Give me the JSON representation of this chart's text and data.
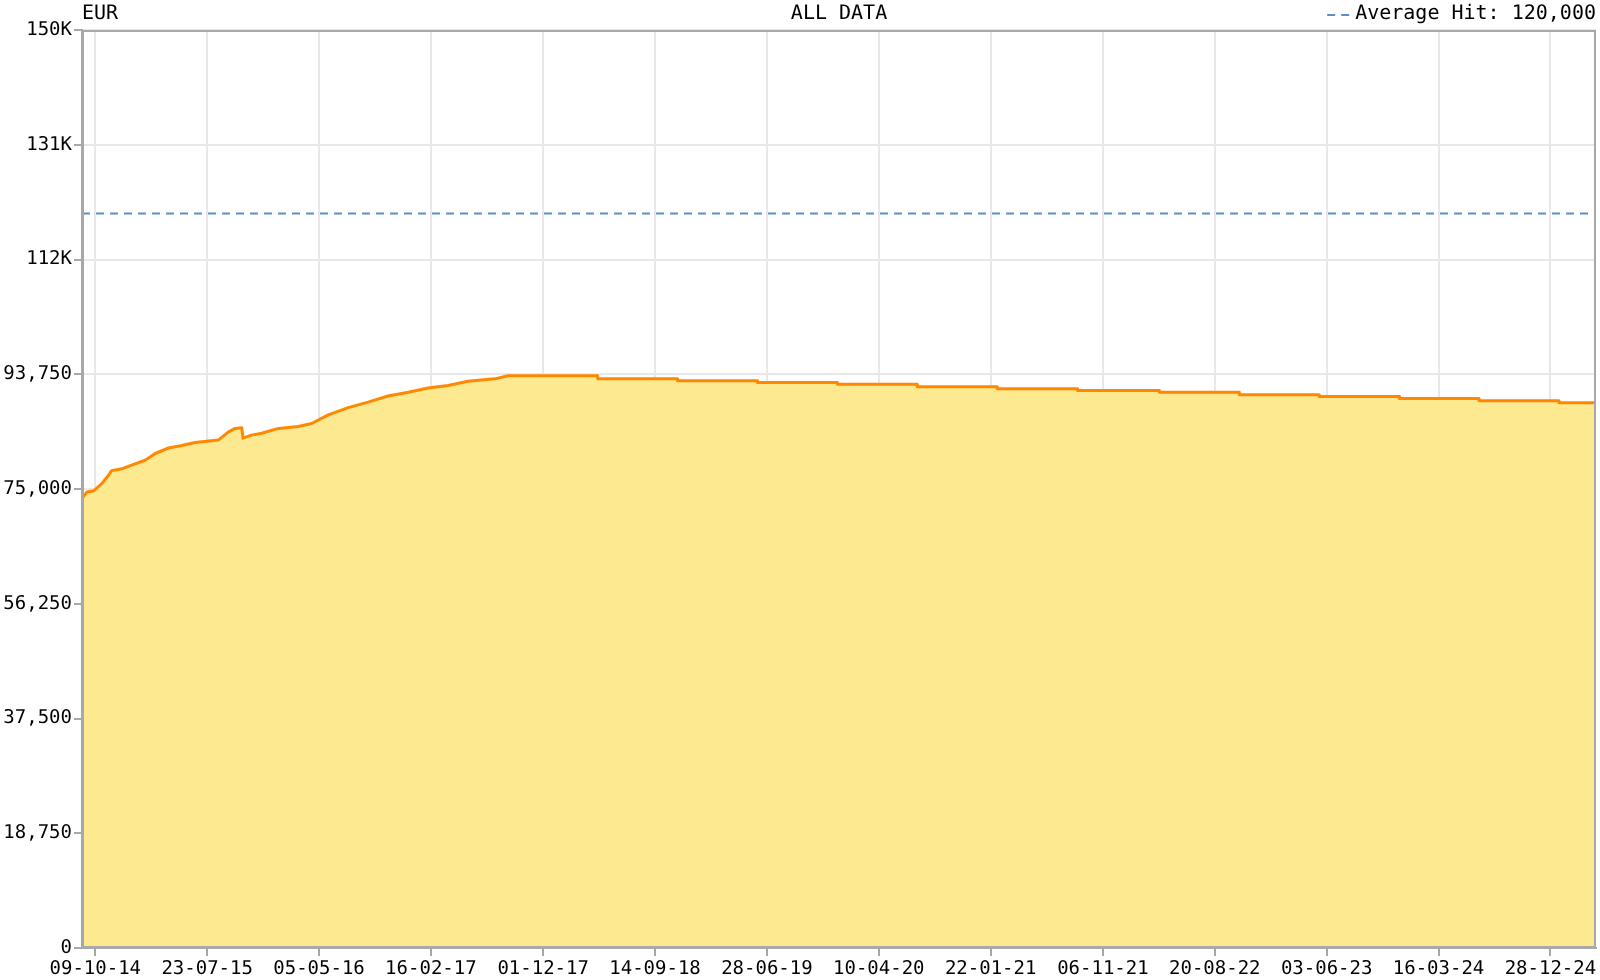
{
  "chart_data": {
    "type": "area",
    "title": "EUR",
    "subtitle": "ALL DATA",
    "x": [
      "2014-09-05",
      "2014-09-18",
      "2014-10-05",
      "2014-10-26",
      "2014-11-09",
      "2014-11-20",
      "2014-12-16",
      "2015-01-19",
      "2015-02-14",
      "2015-03-12",
      "2015-04-15",
      "2015-05-19",
      "2015-06-22",
      "2015-08-21",
      "2015-09-15",
      "2015-10-03",
      "2015-10-20",
      "2015-10-23",
      "2015-11-14",
      "2015-12-10",
      "2016-01-22",
      "2016-03-13",
      "2016-04-16",
      "2016-05-29",
      "2016-07-19",
      "2016-09-08",
      "2016-10-29",
      "2016-12-20",
      "2017-02-09",
      "2017-04-01",
      "2017-05-22",
      "2017-07-30",
      "2017-09-02",
      "2018-04-20",
      "2018-04-20",
      "2018-11-11",
      "2018-11-11",
      "2019-06-04",
      "2019-06-04",
      "2019-12-26",
      "2019-12-26",
      "2020-07-18",
      "2020-07-18",
      "2021-02-08",
      "2021-02-08",
      "2021-09-02",
      "2021-09-02",
      "2022-03-31",
      "2022-03-31",
      "2022-10-22",
      "2022-10-22",
      "2023-05-15",
      "2023-05-15",
      "2023-12-07",
      "2023-12-07",
      "2024-06-28",
      "2024-06-28",
      "2025-01-19",
      "2025-01-19",
      "2025-04-24"
    ],
    "values": [
      73500,
      74500,
      74700,
      75900,
      77000,
      78000,
      78300,
      79100,
      79700,
      80800,
      81700,
      82100,
      82600,
      83000,
      84300,
      84900,
      85000,
      83300,
      83800,
      84100,
      84900,
      85200,
      85700,
      87100,
      88300,
      89200,
      90200,
      90800,
      91500,
      91900,
      92600,
      93000,
      93500,
      93500,
      93000,
      93000,
      92700,
      92700,
      92400,
      92400,
      92100,
      92100,
      91700,
      91700,
      91400,
      91400,
      91100,
      91100,
      90800,
      90800,
      90400,
      90400,
      90100,
      90100,
      89800,
      89800,
      89400,
      89400,
      89100,
      89100
    ],
    "color": "#fde98f",
    "xlim": [
      "2014-09-05",
      "2025-04-24"
    ],
    "xticks": [
      {
        "value": "2014-10-09",
        "label": "09-10-14"
      },
      {
        "value": "2015-07-23",
        "label": "23-07-15"
      },
      {
        "value": "2016-05-05",
        "label": "05-05-16"
      },
      {
        "value": "2017-02-16",
        "label": "16-02-17"
      },
      {
        "value": "2017-12-01",
        "label": "01-12-17"
      },
      {
        "value": "2018-09-14",
        "label": "14-09-18"
      },
      {
        "value": "2019-06-28",
        "label": "28-06-19"
      },
      {
        "value": "2020-04-10",
        "label": "10-04-20"
      },
      {
        "value": "2021-01-22",
        "label": "22-01-21"
      },
      {
        "value": "2021-11-06",
        "label": "06-11-21"
      },
      {
        "value": "2022-08-20",
        "label": "20-08-22"
      },
      {
        "value": "2023-06-03",
        "label": "03-06-23"
      },
      {
        "value": "2024-03-16",
        "label": "16-03-24"
      },
      {
        "value": "2024-12-28",
        "label": "28-12-24"
      }
    ],
    "ylim": [
      0,
      150000
    ],
    "yticks": [
      0,
      {
        "value": 18750,
        "label": "18,750"
      },
      {
        "value": 37500,
        "label": "37,500"
      },
      {
        "value": 56250,
        "label": "56,250"
      },
      {
        "value": 75000,
        "label": "75,000"
      },
      {
        "value": 93750,
        "label": "93,750"
      },
      {
        "value": 112500,
        "label": "112K"
      },
      {
        "value": 131250,
        "label": "131K"
      },
      {
        "value": 150000,
        "label": "150K"
      }
    ],
    "ref_lines": [
      {
        "axis": "y",
        "value": 120000,
        "label": "Average Hit: 120,000",
        "color": "#5b8fc7",
        "line_style": "dashed"
      }
    ],
    "grid": true
  }
}
